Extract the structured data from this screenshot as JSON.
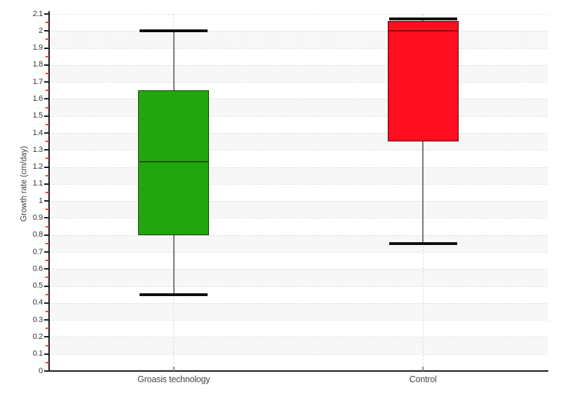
{
  "chart_data": {
    "type": "boxplot",
    "title": "",
    "ylabel": "Growth rate (cm/day)",
    "xlabel": "",
    "ylim": [
      0,
      2.1
    ],
    "ytick_step": 0.1,
    "yminor_tick_step": 0.05,
    "ytick_labels": [
      "0",
      "0.1",
      "0.2",
      "0.3",
      "0.4",
      "0.5",
      "0.6",
      "0.7",
      "0.8",
      "0.9",
      "1",
      "1.1",
      "1.2",
      "1.3",
      "1.4",
      "1.5",
      "1.6",
      "1.7",
      "1.8",
      "1.9",
      "2",
      "2.1"
    ],
    "categories": [
      "Groasis technology",
      "Control"
    ],
    "series": [
      {
        "name": "Groasis technology",
        "min": 0.45,
        "q1": 0.8,
        "median": 1.23,
        "q3": 1.65,
        "max": 2.0,
        "fill": "#22a60d",
        "border": "#17400a",
        "median_color": "#175a0c"
      },
      {
        "name": "Control",
        "min": 0.75,
        "q1": 1.35,
        "median": 2.0,
        "q3": 2.06,
        "max": 2.07,
        "fill": "#ff0e1f",
        "border": "#470710",
        "median_color": "#8e0712"
      }
    ],
    "legend": "none",
    "grid": {
      "horizontal": "dashed line every 0.1 with alternating shaded bands",
      "vertical": "dashed line at each category center"
    },
    "style": {
      "background": "#ffffff",
      "band_fill": "#f7f7f7",
      "gridline": "#e1e1e1",
      "category_gridline": "#dcdcdc",
      "axis": "#1a1a1a",
      "whisker": "#7a7a7a",
      "whisker_cap": "#0d0d0d",
      "major_tick": "#1a1a1a",
      "minor_tick": "#ff3b30",
      "tick_label": "#333333",
      "category_label": "#474747"
    }
  }
}
